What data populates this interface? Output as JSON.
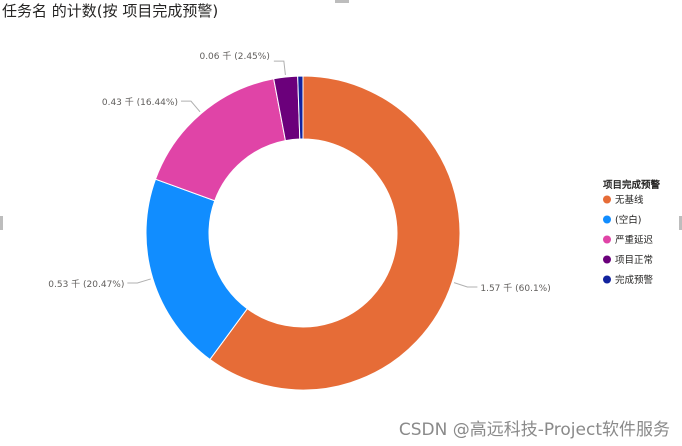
{
  "chart_data": {
    "type": "pie",
    "donut": true,
    "title": "任务名 的计数(按 项目完成预警)",
    "legend_title": "项目完成预警",
    "legend_position": "right",
    "categories": [
      "无基线",
      "(空白)",
      "严重延迟",
      "项目正常",
      "完成预警"
    ],
    "values": [
      1.57,
      0.53,
      0.43,
      0.06,
      0.01
    ],
    "percents": [
      60.1,
      20.47,
      16.44,
      2.45,
      0.54
    ],
    "colors": [
      "#E66C37",
      "#118DFF",
      "#E044A7",
      "#6B007B",
      "#12239E"
    ],
    "data_labels": [
      "1.57 千 (60.1%)",
      "0.53 千 (20.47%)",
      "0.43 千 (16.44%)",
      "0.06 千 (2.45%)",
      ""
    ]
  },
  "watermark": "CSDN @高远科技-Project软件服务"
}
